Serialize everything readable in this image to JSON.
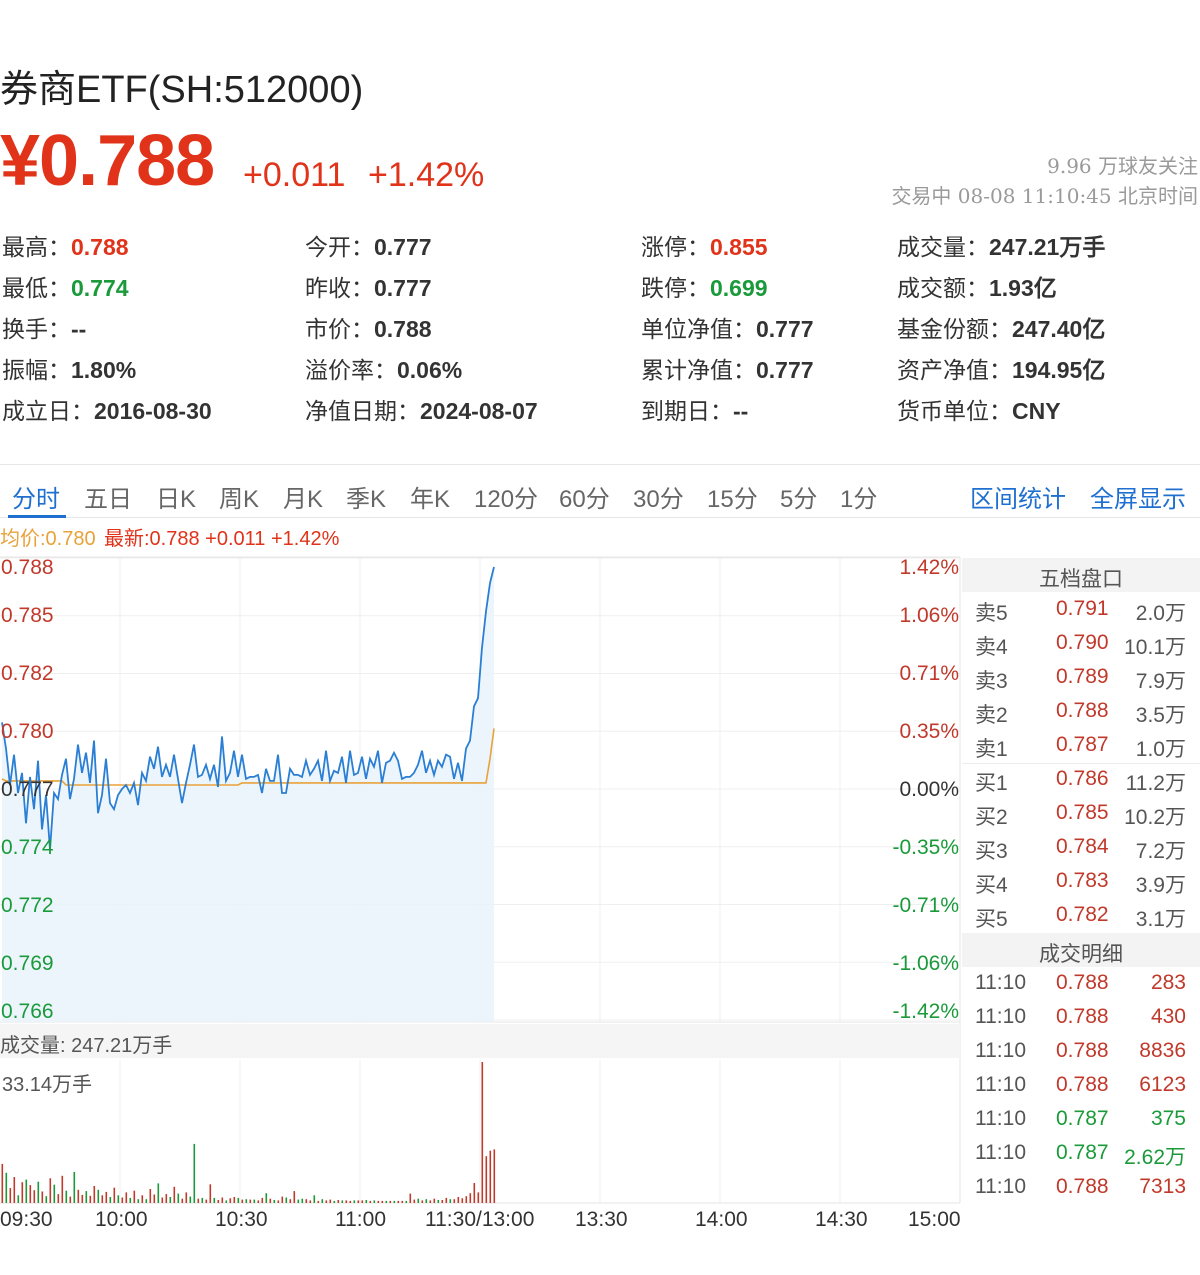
{
  "header": {
    "title": "券商ETF(SH:512000)",
    "price": "¥0.788",
    "change": "+0.011",
    "change_pct": "+1.42%",
    "followers": "9.96 万球友关注",
    "status": "交易中 08-08 11:10:45 北京时间"
  },
  "stats": [
    {
      "label": "最高：",
      "value": "0.788",
      "color": "red"
    },
    {
      "label": "今开：",
      "value": "0.777",
      "color": "normal"
    },
    {
      "label": "涨停：",
      "value": "0.855",
      "color": "red"
    },
    {
      "label": "成交量：",
      "value": "247.21万手",
      "color": "normal"
    },
    {
      "label": "最低：",
      "value": "0.774",
      "color": "green"
    },
    {
      "label": "昨收：",
      "value": "0.777",
      "color": "normal"
    },
    {
      "label": "跌停：",
      "value": "0.699",
      "color": "green"
    },
    {
      "label": "成交额：",
      "value": "1.93亿",
      "color": "normal"
    },
    {
      "label": "换手：",
      "value": "--",
      "color": "normal"
    },
    {
      "label": "市价：",
      "value": "0.788",
      "color": "normal"
    },
    {
      "label": "单位净值：",
      "value": "0.777",
      "color": "normal"
    },
    {
      "label": "基金份额：",
      "value": "247.40亿",
      "color": "normal"
    },
    {
      "label": "振幅：",
      "value": "1.80%",
      "color": "normal"
    },
    {
      "label": "溢价率：",
      "value": "0.06%",
      "color": "normal"
    },
    {
      "label": "累计净值：",
      "value": "0.777",
      "color": "normal"
    },
    {
      "label": "资产净值：",
      "value": "194.95亿",
      "color": "normal"
    },
    {
      "label": "成立日：",
      "value": "2016-08-30",
      "color": "normal"
    },
    {
      "label": "净值日期：",
      "value": "2024-08-07",
      "color": "normal"
    },
    {
      "label": "到期日：",
      "value": "--",
      "color": "normal"
    },
    {
      "label": "货币单位：",
      "value": "CNY",
      "color": "normal"
    }
  ],
  "tabs": [
    "分时",
    "五日",
    "日K",
    "周K",
    "月K",
    "季K",
    "年K",
    "120分",
    "60分",
    "30分",
    "15分",
    "5分",
    "1分"
  ],
  "tools": {
    "range_stats": "区间统计",
    "fullscreen": "全屏显示"
  },
  "legend": {
    "avg": "均价:0.780",
    "latest": "最新:0.788 +0.011 +1.42%"
  },
  "colors": {
    "up": "#e0331a",
    "down": "#1a9a3a",
    "price_line": "#2a7fd4",
    "avg_line": "#e8a23a",
    "accent": "#1f6fd1"
  },
  "chart_data": {
    "type": "line",
    "price_ticks": [
      "0.788",
      "0.785",
      "0.782",
      "0.780",
      "0.777",
      "0.774",
      "0.772",
      "0.769",
      "0.766"
    ],
    "pct_ticks": [
      "1.42%",
      "1.06%",
      "0.71%",
      "0.35%",
      "0.00%",
      "-0.35%",
      "-0.71%",
      "-1.06%",
      "-1.42%"
    ],
    "time_ticks": [
      "09:30",
      "10:00",
      "10:30",
      "11:00",
      "11:30/13:00",
      "13:30",
      "14:00",
      "14:30",
      "15:00"
    ],
    "ylim": [
      0.766,
      0.788
    ],
    "xlim": [
      0,
      240
    ],
    "prev_close": 0.777,
    "price_series": [
      0.7803,
      0.779,
      0.7772,
      0.7787,
      0.7768,
      0.7778,
      0.7753,
      0.7776,
      0.776,
      0.7784,
      0.775,
      0.7767,
      0.774,
      0.7768,
      0.7765,
      0.7777,
      0.7785,
      0.7765,
      0.7775,
      0.7792,
      0.7778,
      0.7788,
      0.7773,
      0.7794,
      0.7758,
      0.7767,
      0.7785,
      0.7763,
      0.776,
      0.7767,
      0.777,
      0.7772,
      0.7768,
      0.7773,
      0.7762,
      0.7778,
      0.7774,
      0.7786,
      0.778,
      0.7791,
      0.7776,
      0.7782,
      0.7776,
      0.7787,
      0.7775,
      0.7763,
      0.7773,
      0.7782,
      0.7792,
      0.7776,
      0.7777,
      0.7782,
      0.7775,
      0.7782,
      0.7771,
      0.7796,
      0.7774,
      0.7778,
      0.7789,
      0.7776,
      0.7787,
      0.7775,
      0.7776,
      0.7776,
      0.7777,
      0.7768,
      0.778,
      0.7774,
      0.7774,
      0.7787,
      0.7768,
      0.7768,
      0.778,
      0.7777,
      0.7777,
      0.7776,
      0.7784,
      0.7777,
      0.778,
      0.7784,
      0.7774,
      0.7789,
      0.7774,
      0.7779,
      0.7778,
      0.7786,
      0.7773,
      0.7789,
      0.7777,
      0.7778,
      0.7786,
      0.7775,
      0.7785,
      0.7781,
      0.7789,
      0.7773,
      0.7783,
      0.7784,
      0.7788,
      0.7784,
      0.7775,
      0.7776,
      0.7776,
      0.7778,
      0.7782,
      0.7789,
      0.7778,
      0.7784,
      0.7777,
      0.7784,
      0.7781,
      0.7787,
      0.7786,
      0.7775,
      0.7783,
      0.7774,
      0.779,
      0.7794,
      0.7811,
      0.7815,
      0.784,
      0.7858,
      0.7872,
      0.788
    ],
    "avg_series": [
      0.7775,
      0.7774,
      0.7774,
      0.7774,
      0.7774,
      0.7774,
      0.7774,
      0.7774,
      0.7774,
      0.7774,
      0.7774,
      0.7774,
      0.7774,
      0.7774,
      0.7774,
      0.7774,
      0.7772,
      0.7772,
      0.7772,
      0.7772,
      0.7772,
      0.7772,
      0.7772,
      0.7772,
      0.7772,
      0.7772,
      0.7772,
      0.7772,
      0.7772,
      0.7772,
      0.7772,
      0.7772,
      0.7772,
      0.7772,
      0.7772,
      0.7772,
      0.7772,
      0.7772,
      0.7772,
      0.7772,
      0.7772,
      0.7772,
      0.7772,
      0.7772,
      0.7772,
      0.7772,
      0.7772,
      0.7772,
      0.7772,
      0.7772,
      0.7772,
      0.7772,
      0.7772,
      0.7772,
      0.7772,
      0.7772,
      0.7772,
      0.7772,
      0.7772,
      0.7772,
      0.7773,
      0.7773,
      0.7773,
      0.7773,
      0.7773,
      0.7773,
      0.7773,
      0.7773,
      0.7773,
      0.7773,
      0.7773,
      0.7773,
      0.7773,
      0.7773,
      0.7773,
      0.7773,
      0.7773,
      0.7773,
      0.7773,
      0.7773,
      0.7773,
      0.7773,
      0.7773,
      0.7773,
      0.7773,
      0.7773,
      0.7773,
      0.7773,
      0.7773,
      0.7773,
      0.7773,
      0.7773,
      0.7773,
      0.7773,
      0.7773,
      0.7773,
      0.7773,
      0.7773,
      0.7773,
      0.7773,
      0.7773,
      0.7773,
      0.7773,
      0.7773,
      0.7773,
      0.7773,
      0.7773,
      0.7773,
      0.7773,
      0.7773,
      0.7773,
      0.7773,
      0.7773,
      0.7773,
      0.7773,
      0.7773,
      0.7773,
      0.7773,
      0.7773,
      0.7773,
      0.7773,
      0.7773,
      0.7785,
      0.78
    ],
    "volume_label": "成交量: 247.21万手",
    "volume_max_label": "33.14万手",
    "volume_max": 33.14,
    "volume_series": [
      9.2,
      7.1,
      3.5,
      6.1,
      1.8,
      4.9,
      5.5,
      4.2,
      3.0,
      5.0,
      2.7,
      1.6,
      5.8,
      4.3,
      2.1,
      6.4,
      2.9,
      1.5,
      7.3,
      3.1,
      1.9,
      2.8,
      1.7,
      4.0,
      3.1,
      1.8,
      2.6,
      1.4,
      3.6,
      1.8,
      1.3,
      2.5,
      1.2,
      2.9,
      0.9,
      1.8,
      0.9,
      3.3,
      2.0,
      4.6,
      1.3,
      2.1,
      1.4,
      3.8,
      2.2,
      1.0,
      2.5,
      1.5,
      13.9,
      1.0,
      1.2,
      0.8,
      4.4,
      1.2,
      0.7,
      1.3,
      0.6,
      1.1,
      1.4,
      1.2,
      0.8,
      0.9,
      0.8,
      0.8,
      0.6,
      1.2,
      2.3,
      1.0,
      0.7,
      0.6,
      1.5,
      1.3,
      0.9,
      2.8,
      0.8,
      1.0,
      0.9,
      0.6,
      1.8,
      0.5,
      0.9,
      0.6,
      0.8,
      0.5,
      0.7,
      0.6,
      0.6,
      0.5,
      0.6,
      0.6,
      0.6,
      0.7,
      0.5,
      0.6,
      0.5,
      0.5,
      0.5,
      0.5,
      0.5,
      0.5,
      0.5,
      0.5,
      2.2,
      0.8,
      1.0,
      0.6,
      0.9,
      0.6,
      1.0,
      0.7,
      0.7,
      1.2,
      0.9,
      0.9,
      1.4,
      1.1,
      1.6,
      2.3,
      4.7,
      2.5,
      33.14,
      11.0,
      12.3,
      12.6
    ],
    "volume_colors": [
      "r",
      "g",
      "r",
      "r",
      "g",
      "r",
      "g",
      "r",
      "r",
      "g",
      "r",
      "g",
      "r",
      "g",
      "r",
      "r",
      "g",
      "r",
      "g",
      "r",
      "r",
      "g",
      "r",
      "r",
      "g",
      "r",
      "r",
      "g",
      "r",
      "g",
      "r",
      "r",
      "g",
      "r",
      "g",
      "r",
      "g",
      "r",
      "r",
      "g",
      "r",
      "r",
      "g",
      "r",
      "g",
      "r",
      "r",
      "g",
      "g",
      "r",
      "g",
      "r",
      "r",
      "g",
      "r",
      "r",
      "g",
      "r",
      "r",
      "g",
      "r",
      "g",
      "r",
      "g",
      "r",
      "r",
      "g",
      "r",
      "g",
      "r",
      "r",
      "g",
      "r",
      "r",
      "g",
      "g",
      "r",
      "r",
      "g",
      "r",
      "g",
      "r",
      "r",
      "g",
      "r",
      "g",
      "r",
      "r",
      "g",
      "r",
      "r",
      "g",
      "r",
      "g",
      "r",
      "r",
      "g",
      "r",
      "g",
      "r",
      "r",
      "g",
      "r",
      "r",
      "g",
      "r",
      "g",
      "r",
      "r",
      "g",
      "r",
      "r",
      "g",
      "r",
      "r",
      "r",
      "r",
      "r",
      "r",
      "r",
      "r",
      "r",
      "r",
      "r"
    ]
  },
  "orderbook": {
    "title": "五档盘口",
    "rows": [
      {
        "label": "卖5",
        "price": "0.791",
        "vol": "2.0万"
      },
      {
        "label": "卖4",
        "price": "0.790",
        "vol": "10.1万"
      },
      {
        "label": "卖3",
        "price": "0.789",
        "vol": "7.9万"
      },
      {
        "label": "卖2",
        "price": "0.788",
        "vol": "3.5万"
      },
      {
        "label": "卖1",
        "price": "0.787",
        "vol": "1.0万"
      },
      {
        "label": "买1",
        "price": "0.786",
        "vol": "11.2万"
      },
      {
        "label": "买2",
        "price": "0.785",
        "vol": "10.2万"
      },
      {
        "label": "买3",
        "price": "0.784",
        "vol": "7.2万"
      },
      {
        "label": "买4",
        "price": "0.783",
        "vol": "3.9万"
      },
      {
        "label": "买5",
        "price": "0.782",
        "vol": "3.1万"
      }
    ]
  },
  "trades": {
    "title": "成交明细",
    "rows": [
      {
        "time": "11:10",
        "price": "0.788",
        "vol": "283",
        "side": "buy"
      },
      {
        "time": "11:10",
        "price": "0.788",
        "vol": "430",
        "side": "buy"
      },
      {
        "time": "11:10",
        "price": "0.788",
        "vol": "8836",
        "side": "buy"
      },
      {
        "time": "11:10",
        "price": "0.788",
        "vol": "6123",
        "side": "buy"
      },
      {
        "time": "11:10",
        "price": "0.787",
        "vol": "375",
        "side": "sell"
      },
      {
        "time": "11:10",
        "price": "0.787",
        "vol": "2.62万",
        "side": "sell"
      },
      {
        "time": "11:10",
        "price": "0.788",
        "vol": "7313",
        "side": "buy"
      }
    ]
  }
}
